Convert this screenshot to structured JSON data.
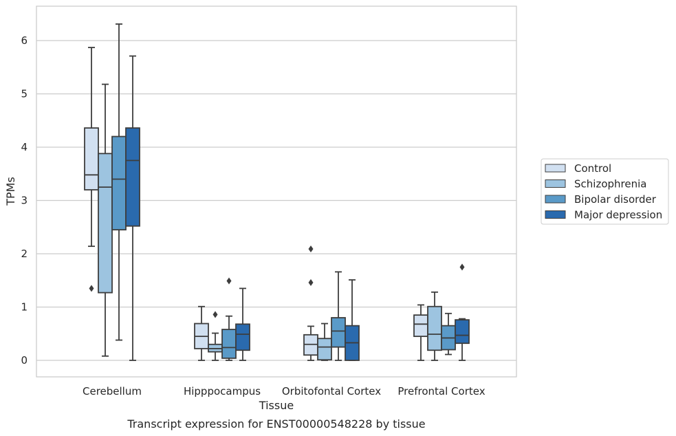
{
  "chart_data": {
    "type": "box",
    "caption": "Transcript expression for ENST00000548228 by tissue",
    "xlabel": "Tissue",
    "ylabel": "TPMs",
    "ylim": [
      -0.3,
      6.65
    ],
    "yticks": [
      0,
      1,
      2,
      3,
      4,
      5,
      6
    ],
    "grid": "horizontal",
    "legend_position": "right",
    "categories": [
      "Cerebellum",
      "Hipppocampus",
      "Orbitofontal Cortex",
      "Prefrontal Cortex"
    ],
    "series": [
      {
        "name": "Control",
        "color": "#d1e0f1",
        "boxes": [
          {
            "whisker_low": 2.14,
            "q1": 3.2,
            "median": 3.48,
            "q3": 4.36,
            "whisker_high": 5.87,
            "outliers": [
              1.35
            ]
          },
          {
            "whisker_low": 0.0,
            "q1": 0.22,
            "median": 0.45,
            "q3": 0.69,
            "whisker_high": 1.01,
            "outliers": []
          },
          {
            "whisker_low": 0.0,
            "q1": 0.1,
            "median": 0.3,
            "q3": 0.48,
            "whisker_high": 0.64,
            "outliers": [
              1.46,
              2.09
            ]
          },
          {
            "whisker_low": 0.0,
            "q1": 0.45,
            "median": 0.68,
            "q3": 0.85,
            "whisker_high": 1.04,
            "outliers": []
          }
        ]
      },
      {
        "name": "Schizophrenia",
        "color": "#9dc4e0",
        "boxes": [
          {
            "whisker_low": 0.08,
            "q1": 1.27,
            "median": 3.25,
            "q3": 3.88,
            "whisker_high": 5.18,
            "outliers": []
          },
          {
            "whisker_low": 0.0,
            "q1": 0.16,
            "median": 0.22,
            "q3": 0.3,
            "whisker_high": 0.51,
            "outliers": [
              0.86
            ]
          },
          {
            "whisker_low": 0.0,
            "q1": 0.01,
            "median": 0.25,
            "q3": 0.41,
            "whisker_high": 0.69,
            "outliers": []
          },
          {
            "whisker_low": 0.0,
            "q1": 0.19,
            "median": 0.49,
            "q3": 1.01,
            "whisker_high": 1.28,
            "outliers": []
          }
        ]
      },
      {
        "name": "Bipolar disorder",
        "color": "#5a9ac8",
        "boxes": [
          {
            "whisker_low": 0.38,
            "q1": 2.45,
            "median": 3.4,
            "q3": 4.2,
            "whisker_high": 6.31,
            "outliers": []
          },
          {
            "whisker_low": 0.0,
            "q1": 0.04,
            "median": 0.24,
            "q3": 0.58,
            "whisker_high": 0.83,
            "outliers": [
              1.49
            ]
          },
          {
            "whisker_low": 0.0,
            "q1": 0.25,
            "median": 0.55,
            "q3": 0.8,
            "whisker_high": 1.66,
            "outliers": []
          },
          {
            "whisker_low": 0.11,
            "q1": 0.2,
            "median": 0.42,
            "q3": 0.65,
            "whisker_high": 0.88,
            "outliers": []
          }
        ]
      },
      {
        "name": "Major depression",
        "color": "#2a6aae",
        "boxes": [
          {
            "whisker_low": 0.0,
            "q1": 2.52,
            "median": 3.75,
            "q3": 4.36,
            "whisker_high": 5.71,
            "outliers": []
          },
          {
            "whisker_low": 0.0,
            "q1": 0.19,
            "median": 0.49,
            "q3": 0.68,
            "whisker_high": 1.35,
            "outliers": []
          },
          {
            "whisker_low": 0.0,
            "q1": 0.0,
            "median": 0.33,
            "q3": 0.65,
            "whisker_high": 1.51,
            "outliers": []
          },
          {
            "whisker_low": 0.0,
            "q1": 0.32,
            "median": 0.47,
            "q3": 0.76,
            "whisker_high": 0.78,
            "outliers": [
              1.75
            ]
          }
        ]
      }
    ]
  }
}
